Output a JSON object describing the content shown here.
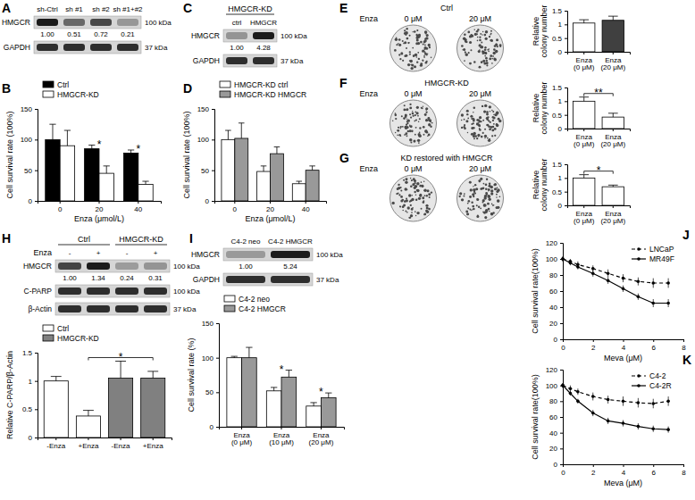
{
  "chart_data": [
    {
      "type": "blot",
      "panel": "A",
      "lanes": [
        "sh-Ctrl",
        "sh #1",
        "sh #2",
        "sh #1+#2"
      ],
      "bands": [
        {
          "name": "HMGCR",
          "kda": "100 kDa",
          "values": [
            1,
            0.51,
            0.72,
            0.21
          ],
          "value_labels": [
            "1.00",
            "0.51",
            "0.72",
            "0.21"
          ]
        },
        {
          "name": "GAPDH",
          "kda": "37 kDa"
        }
      ]
    },
    {
      "type": "bar",
      "panel": "B",
      "categories": [
        "0",
        "20",
        "40"
      ],
      "series": [
        {
          "name": "Ctrl",
          "color": "#000000",
          "values": [
            100,
            85,
            78
          ],
          "errors": [
            25,
            6,
            5
          ]
        },
        {
          "name": "HMGCR-KD",
          "color": "#ffffff",
          "values": [
            90,
            45,
            27
          ],
          "errors": [
            25,
            12,
            5
          ]
        }
      ],
      "x_label": "Enza (μmol/L)",
      "y_label": "Cell survival rate (100%)",
      "ylim": [
        0,
        150
      ],
      "yticks": [
        0,
        50,
        100,
        150
      ],
      "legend": "top",
      "annotations": [
        {
          "text": "*",
          "at": [
            1
          ]
        },
        {
          "text": "*",
          "at": [
            2
          ]
        }
      ]
    },
    {
      "type": "blot",
      "panel": "C",
      "groups": [
        "HMGCR-KD"
      ],
      "lanes": [
        "ctrl",
        "HMGCR"
      ],
      "bands": [
        {
          "name": "HMGCR",
          "kda": "100 kDa",
          "values": [
            1,
            4.28
          ],
          "value_labels": [
            "1.00",
            "4.28"
          ]
        },
        {
          "name": "GAPDH",
          "kda": "37 kDa"
        }
      ]
    },
    {
      "type": "bar",
      "panel": "D",
      "categories": [
        "0",
        "20",
        "40"
      ],
      "series": [
        {
          "name": "HMGCR-KD ctrl",
          "color": "#ffffff",
          "values": [
            100,
            48,
            28
          ],
          "errors": [
            15,
            9,
            4
          ]
        },
        {
          "name": "HMGCR-KD HMGCR",
          "color": "#999999",
          "values": [
            102,
            77,
            50
          ],
          "errors": [
            25,
            11,
            7
          ]
        }
      ],
      "x_label": "Enza (μmol/L)",
      "y_label": "Cell survival rate (100%)",
      "ylim": [
        0,
        150
      ],
      "yticks": [
        0,
        50,
        100,
        150
      ],
      "legend": "top"
    },
    {
      "type": "image",
      "panel": "E",
      "title": "Ctrl",
      "row_label": "Enza",
      "columns": [
        "0 μM",
        "20 μM"
      ]
    },
    {
      "type": "bar",
      "categories": [
        "Enza (0 μM)",
        "Enza (20 μM)"
      ],
      "values": [
        1.05,
        1.15
      ],
      "errors": [
        0.12,
        0.15
      ],
      "colors": [
        "#ffffff",
        "#404040"
      ],
      "y_label": "Relative colony number",
      "ylim": [
        0,
        1.5
      ],
      "yticks": [
        0,
        0.5,
        1,
        1.5
      ]
    },
    {
      "type": "image",
      "panel": "F",
      "title": "HMGCR-KD",
      "row_label": "Enza",
      "columns": [
        "0 μM",
        "20 μM"
      ]
    },
    {
      "type": "bar",
      "categories": [
        "Enza (0 μM)",
        "Enza (20 μM)"
      ],
      "values": [
        1,
        0.42
      ],
      "errors": [
        0.15,
        0.14
      ],
      "colors": [
        "#ffffff",
        "#ffffff"
      ],
      "y_label": "Relative colony number",
      "ylim": [
        0,
        1.5
      ],
      "yticks": [
        0,
        0.5,
        1,
        1.5
      ],
      "annotations": [
        {
          "text": "**",
          "at": [
            0,
            1
          ]
        }
      ]
    },
    {
      "type": "image",
      "panel": "G",
      "title": "KD restored with HMGCR",
      "row_label": "Enza",
      "columns": [
        "0 μM",
        "20 μM"
      ]
    },
    {
      "type": "bar",
      "categories": [
        "Enza (0 μM)",
        "Enza (20 μM)"
      ],
      "values": [
        1,
        0.68
      ],
      "errors": [
        0.12,
        0.06
      ],
      "colors": [
        "#ffffff",
        "#ffffff"
      ],
      "y_label": "Relative colony number",
      "ylim": [
        0,
        1.5
      ],
      "yticks": [
        0,
        0.5,
        1,
        1.5
      ],
      "annotations": [
        {
          "text": "*",
          "at": [
            0,
            1
          ]
        }
      ]
    },
    {
      "type": "blot",
      "panel": "H",
      "groups": [
        "Ctrl",
        "HMGCR-KD"
      ],
      "row_label": "Enza",
      "lanes": [
        "-",
        "+",
        "-",
        "+"
      ],
      "bands": [
        {
          "name": "HMGCR",
          "kda": "100 kDa",
          "values": [
            1,
            1.34,
            0.24,
            0.31
          ],
          "value_labels": [
            "1.00",
            "1.34",
            "0.24",
            "0.31"
          ]
        },
        {
          "name": "C-PARP",
          "kda": "100 kDa"
        },
        {
          "name": "β-Actin",
          "kda": "37 kDa"
        }
      ]
    },
    {
      "type": "bar",
      "categories": [
        "-Enza",
        "+Enza",
        "-Enza",
        "+Enza"
      ],
      "series": [
        {
          "name": "Ctrl",
          "color": "#ffffff",
          "values": [
            1,
            0.38,
            null,
            null
          ],
          "errors": [
            0.08,
            0.1,
            null,
            null
          ]
        },
        {
          "name": "HMGCR-KD",
          "color": "#808080",
          "values": [
            null,
            null,
            1.05,
            1.05
          ],
          "errors": [
            null,
            null,
            0.3,
            0.12
          ]
        }
      ],
      "y_label": "Relative C-PARP/β-Actin",
      "ylim": [
        0,
        1.5
      ],
      "yticks": [
        0,
        0.5,
        1,
        1.5
      ],
      "legend": "top",
      "annotations": [
        {
          "text": "*",
          "at": [
            1,
            3
          ]
        }
      ]
    },
    {
      "type": "blot",
      "panel": "I",
      "lanes": [
        "C4-2 neo",
        "C4-2 HMGCR"
      ],
      "bands": [
        {
          "name": "HMGCR",
          "kda": "100 kDa",
          "values": [
            1,
            5.24
          ],
          "value_labels": [
            "1.00",
            "5.24"
          ]
        },
        {
          "name": "GAPDH",
          "kda": "37 kDa"
        }
      ]
    },
    {
      "type": "bar",
      "categories": [
        "Enza (0 μM)",
        "Enza (10 μM)",
        "Enza (20 μM)"
      ],
      "series": [
        {
          "name": "C4-2 neo",
          "color": "#ffffff",
          "values": [
            100,
            52,
            30
          ],
          "errors": [
            2,
            5,
            5
          ]
        },
        {
          "name": "C4-2 HMGCR",
          "color": "#999999",
          "values": [
            100,
            72,
            42
          ],
          "errors": [
            15,
            10,
            7
          ]
        }
      ],
      "y_label": "Cell survival rate (%)",
      "ylim": [
        0,
        150
      ],
      "yticks": [
        0,
        50,
        100,
        150
      ],
      "legend": "top",
      "annotations": [
        {
          "text": "*",
          "at": [
            1
          ]
        },
        {
          "text": "*",
          "at": [
            2
          ]
        }
      ]
    },
    {
      "type": "line",
      "panel": "J",
      "x": [
        0,
        0.5,
        1,
        2,
        3,
        4,
        5,
        6,
        7
      ],
      "series": [
        {
          "name": "LNCaP",
          "color": "#000000",
          "line_style": "dashed",
          "marker": "circle",
          "values": [
            100,
            97,
            93,
            88,
            82,
            76,
            72,
            70,
            70
          ],
          "errors": [
            3,
            3,
            4,
            4,
            5,
            5,
            5,
            6,
            6
          ]
        },
        {
          "name": "MR49F",
          "color": "#000000",
          "line_style": "solid",
          "marker": "circle",
          "values": [
            100,
            95,
            90,
            82,
            73,
            63,
            53,
            45,
            45
          ],
          "errors": [
            3,
            3,
            3,
            4,
            4,
            4,
            4,
            5,
            5
          ]
        }
      ],
      "x_label": "Meva (μM)",
      "y_label": "Cell survival rate(100%)",
      "xlim": [
        0,
        8
      ],
      "xticks": [
        0,
        2,
        4,
        6,
        8
      ],
      "ylim": [
        0,
        120
      ],
      "yticks": [
        0,
        20,
        40,
        60,
        80,
        100,
        120
      ],
      "legend": "top-right"
    },
    {
      "type": "line",
      "panel": "K",
      "x": [
        0,
        0.5,
        1,
        2,
        3,
        4,
        5,
        6,
        7
      ],
      "series": [
        {
          "name": "C4-2",
          "color": "#000000",
          "line_style": "dashed",
          "marker": "circle",
          "values": [
            100,
            96,
            92,
            86,
            82,
            80,
            78,
            77,
            80
          ],
          "errors": [
            3,
            4,
            4,
            5,
            5,
            6,
            6,
            6,
            6
          ]
        },
        {
          "name": "C4-2R",
          "color": "#000000",
          "line_style": "solid",
          "marker": "circle",
          "values": [
            100,
            90,
            80,
            65,
            55,
            52,
            48,
            45,
            44
          ],
          "errors": [
            3,
            3,
            3,
            4,
            4,
            4,
            4,
            4,
            4
          ]
        }
      ],
      "x_label": "Meva (μM)",
      "y_label": "Cell survival rate(100%)",
      "xlim": [
        0,
        8
      ],
      "xticks": [
        0,
        2,
        4,
        6,
        8
      ],
      "ylim": [
        0,
        120
      ],
      "yticks": [
        0,
        20,
        40,
        60,
        80,
        100,
        120
      ],
      "legend": "top-right"
    }
  ]
}
